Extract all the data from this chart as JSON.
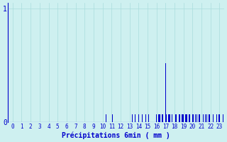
{
  "xlabel": "Précipitations 6min ( mm )",
  "background_color": "#cef0f0",
  "bar_color": "#0000cc",
  "axis_color": "#0000cc",
  "grid_color": "#aadddd",
  "xlim": [
    -0.5,
    23.5
  ],
  "ylim": [
    0,
    1.05
  ],
  "yticks": [
    0,
    1
  ],
  "xtick_labels": [
    "0",
    "1",
    "2",
    "3",
    "4",
    "5",
    "6",
    "7",
    "8",
    "9",
    "10",
    "11",
    "12",
    "13",
    "14",
    "15",
    "16",
    "17",
    "18",
    "19",
    "20",
    "21",
    "22",
    "23"
  ],
  "figsize": [
    3.2,
    2.0
  ],
  "dpi": 100,
  "bar_width": 0.055,
  "slots": [
    [
      10.2,
      0.07
    ],
    [
      10.4,
      0.07
    ],
    [
      11.1,
      0.07
    ],
    [
      11.3,
      0.07
    ],
    [
      13.3,
      0.07
    ],
    [
      13.6,
      0.07
    ],
    [
      14.0,
      0.07
    ],
    [
      14.2,
      0.07
    ],
    [
      14.4,
      0.07
    ],
    [
      14.6,
      0.07
    ],
    [
      14.8,
      0.07
    ],
    [
      15.1,
      0.07
    ],
    [
      15.4,
      0.07
    ],
    [
      15.7,
      0.07
    ],
    [
      16.0,
      0.07
    ],
    [
      16.1,
      0.07
    ],
    [
      16.2,
      0.07
    ],
    [
      16.3,
      0.07
    ],
    [
      16.4,
      0.07
    ],
    [
      16.5,
      0.07
    ],
    [
      16.6,
      0.07
    ],
    [
      16.7,
      0.07
    ],
    [
      16.8,
      0.07
    ],
    [
      16.9,
      0.07
    ],
    [
      17.0,
      0.52
    ],
    [
      17.1,
      0.07
    ],
    [
      17.2,
      0.07
    ],
    [
      17.3,
      0.07
    ],
    [
      17.4,
      0.07
    ],
    [
      17.5,
      0.07
    ],
    [
      17.6,
      0.07
    ],
    [
      17.7,
      0.07
    ],
    [
      18.0,
      0.07
    ],
    [
      18.1,
      0.07
    ],
    [
      18.2,
      0.07
    ],
    [
      18.3,
      0.07
    ],
    [
      18.4,
      0.07
    ],
    [
      18.5,
      0.07
    ],
    [
      18.6,
      0.07
    ],
    [
      18.7,
      0.07
    ],
    [
      18.8,
      0.07
    ],
    [
      18.9,
      0.07
    ],
    [
      19.0,
      0.07
    ],
    [
      19.1,
      0.07
    ],
    [
      19.2,
      0.07
    ],
    [
      19.3,
      0.07
    ],
    [
      19.4,
      0.07
    ],
    [
      19.5,
      0.07
    ],
    [
      19.6,
      0.07
    ],
    [
      19.7,
      0.07
    ],
    [
      20.0,
      0.07
    ],
    [
      20.1,
      0.07
    ],
    [
      20.3,
      0.07
    ],
    [
      20.5,
      0.07
    ],
    [
      20.7,
      0.07
    ],
    [
      20.8,
      0.07
    ],
    [
      20.9,
      0.07
    ],
    [
      21.0,
      0.07
    ],
    [
      21.2,
      0.07
    ],
    [
      21.4,
      0.07
    ],
    [
      21.6,
      0.07
    ],
    [
      21.8,
      0.07
    ],
    [
      21.9,
      0.07
    ],
    [
      22.1,
      0.07
    ],
    [
      22.3,
      0.07
    ],
    [
      22.5,
      0.07
    ],
    [
      22.7,
      0.07
    ],
    [
      22.9,
      0.07
    ],
    [
      23.0,
      0.07
    ],
    [
      23.2,
      0.07
    ],
    [
      23.4,
      0.07
    ],
    [
      23.6,
      0.07
    ],
    [
      23.8,
      0.07
    ]
  ]
}
